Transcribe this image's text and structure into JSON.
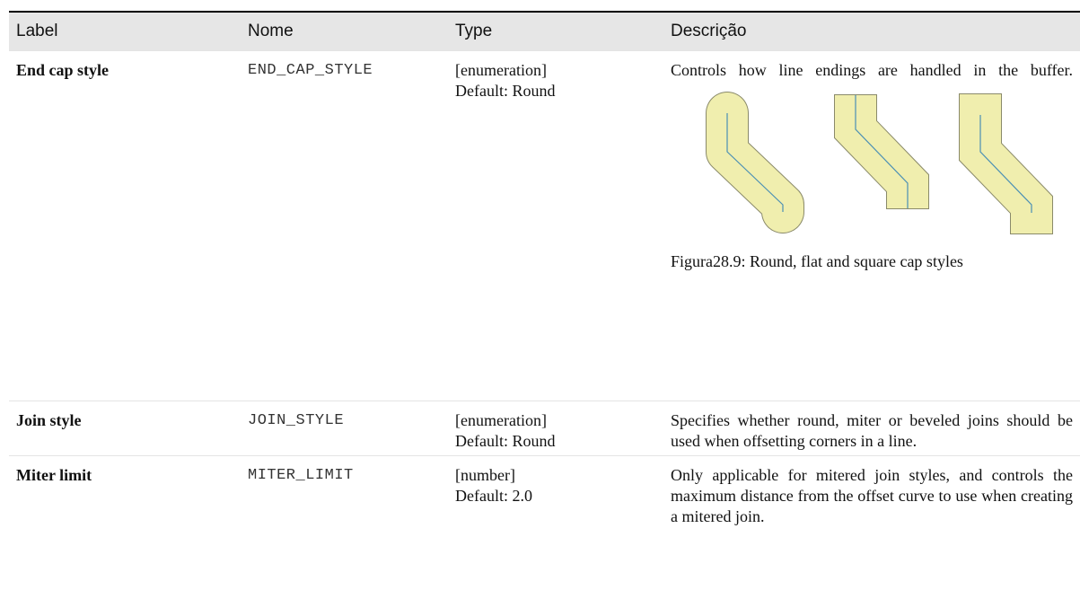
{
  "table": {
    "headers": [
      "Label",
      "Nome",
      "Type",
      "Descrição"
    ],
    "rows": [
      {
        "label": "End cap style",
        "name": "END_CAP_STYLE",
        "type": "[enumeration]",
        "default": "Default: Round",
        "description": "Controls how line endings are handled in the buffer.",
        "figure_caption": "Figura28.9: Round, flat and square cap styles"
      },
      {
        "label": "Join style",
        "name": "JOIN_STYLE",
        "type": "[enumeration]",
        "default": "Default: Round",
        "description": "Specifies whether round, miter or beveled joins should be used when offsetting corners in a line."
      },
      {
        "label": "Miter limit",
        "name": "MITER_LIMIT",
        "type": "[number]",
        "default": "Default: 2.0",
        "description": "Only applicable for mitered join styles, and controls the maximum distance from the offset curve to use when creating a mitered join."
      }
    ]
  }
}
